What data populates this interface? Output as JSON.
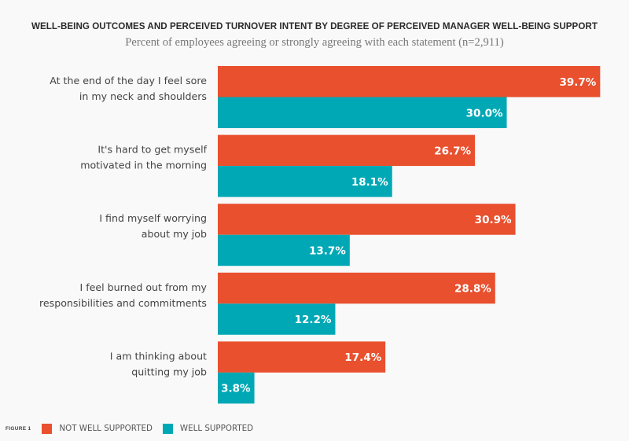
{
  "chart_data": {
    "type": "bar",
    "orientation": "horizontal",
    "title": "WELL-BEING OUTCOMES AND PERCEIVED TURNOVER INTENT BY DEGREE OF PERCEIVED MANAGER WELL-BEING SUPPORT",
    "subtitle": "Percent of employees agreeing or strongly agreeing with each statement (n=2,911)",
    "xlabel": "",
    "ylabel": "",
    "xlim": [
      0,
      40
    ],
    "grid": false,
    "legend_position": "bottom-left",
    "categories": [
      [
        "At the end of the day I feel sore",
        "in my neck and shoulders"
      ],
      [
        "It's hard to get myself",
        "motivated in the morning"
      ],
      [
        "I find myself worrying",
        "about my job"
      ],
      [
        "I feel burned out from my",
        "responsibilities and commitments"
      ],
      [
        "I am thinking about",
        "quitting my job"
      ]
    ],
    "series": [
      {
        "name": "NOT WELL SUPPORTED",
        "color": "#e8502e",
        "values": [
          39.7,
          26.7,
          30.9,
          28.8,
          17.4
        ],
        "labels": [
          "39.7%",
          "26.7%",
          "30.9%",
          "28.8%",
          "17.4%"
        ]
      },
      {
        "name": "WELL SUPPORTED",
        "color": "#00a8b5",
        "values": [
          30.0,
          18.1,
          13.7,
          12.2,
          3.8
        ],
        "labels": [
          "30.0%",
          "18.1%",
          "13.7%",
          "12.2%",
          "3.8%"
        ]
      }
    ],
    "figure_label": "FIGURE 1"
  }
}
